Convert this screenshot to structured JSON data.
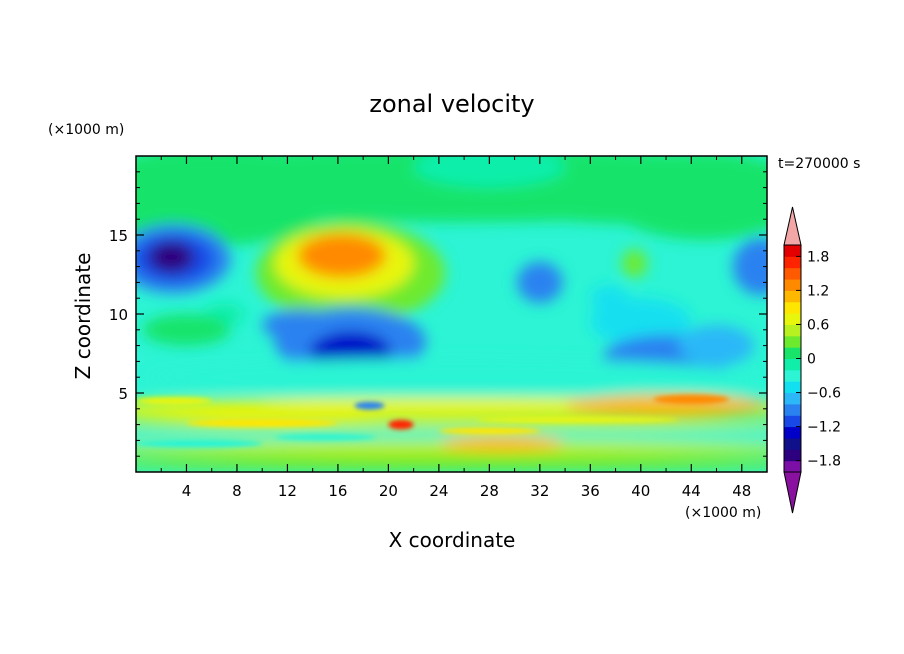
{
  "chart_data": {
    "type": "heatmap",
    "title": "zonal velocity",
    "time_label": "t=270000 s",
    "xlabel": "X coordinate",
    "ylabel": "Z coordinate",
    "x_unit": "(×1000 m)",
    "y_unit": "(×1000 m)",
    "xlim": [
      0,
      50
    ],
    "ylim": [
      0,
      20
    ],
    "x_ticks": [
      4,
      8,
      12,
      16,
      20,
      24,
      28,
      32,
      36,
      40,
      44,
      48
    ],
    "y_ticks": [
      5,
      10,
      15
    ],
    "colorbar": {
      "min": -2.0,
      "max": 2.0,
      "step": 0.2,
      "ticks": [
        "1.8",
        "1.2",
        "0.6",
        "0",
        "−0.6",
        "−1.2",
        "−1.8"
      ],
      "tick_values": [
        1.8,
        1.2,
        0.6,
        0,
        -0.6,
        -1.2,
        -1.8
      ],
      "colors": [
        "#7B0FA6",
        "#2D007F",
        "#10108A",
        "#0000C8",
        "#1848E6",
        "#2A82F0",
        "#2CB8F8",
        "#12E0F0",
        "#2CF4D4",
        "#10EEAA",
        "#18E46A",
        "#6EEA2E",
        "#B8F020",
        "#E8F50C",
        "#FFE600",
        "#FFB800",
        "#FF8A00",
        "#FF5A00",
        "#FF2400",
        "#E40000"
      ],
      "over_color": "#F2A6A6",
      "under_color": "#8A10A0"
    },
    "features": [
      {
        "x": 3.0,
        "z": 13.5,
        "u": -1.7
      },
      {
        "x": 16.5,
        "z": 13.5,
        "u": 1.2
      },
      {
        "x": 16.0,
        "z": 7.5,
        "u": -1.3
      },
      {
        "x": 32.0,
        "z": 12.0,
        "u": -1.0
      },
      {
        "x": 42.0,
        "z": 7.0,
        "u": -1.1
      },
      {
        "x": 49.0,
        "z": 13.0,
        "u": -1.1
      },
      {
        "x": 21.0,
        "z": 3.0,
        "u": 1.6
      },
      {
        "x": 29.0,
        "z": 1.8,
        "u": 1.1
      }
    ]
  }
}
